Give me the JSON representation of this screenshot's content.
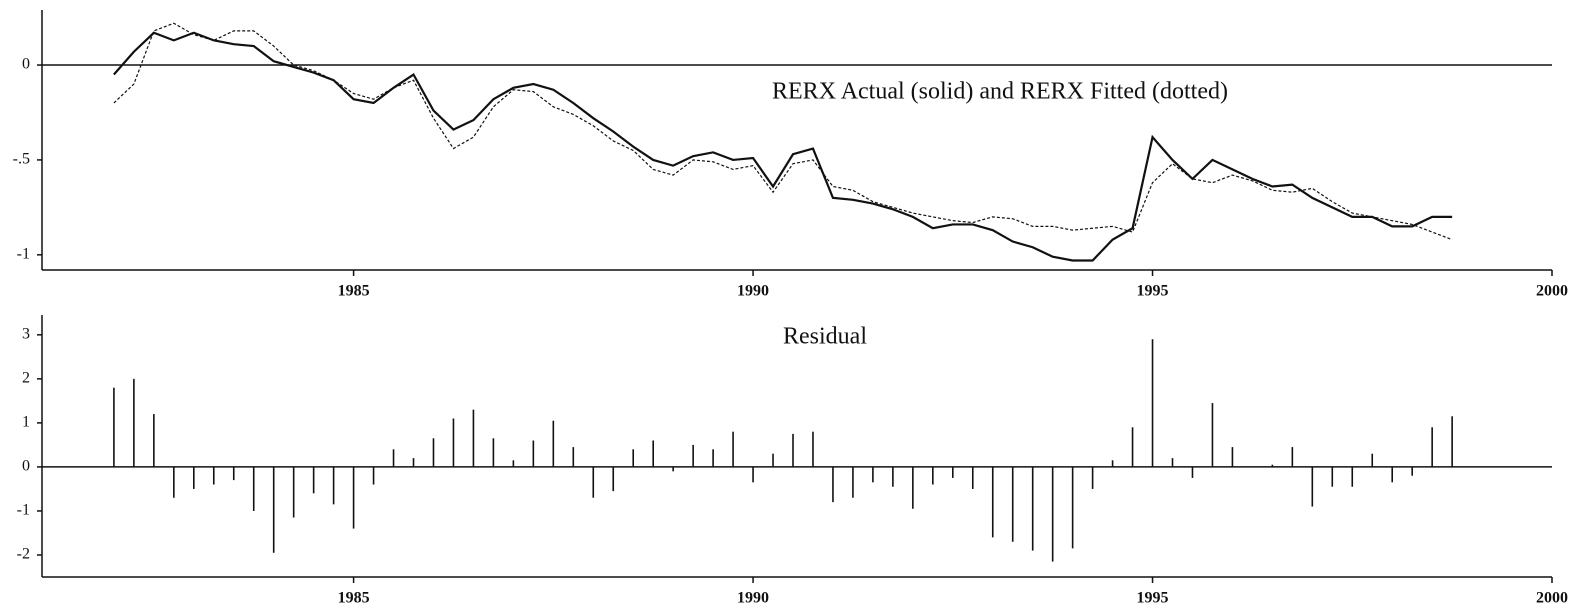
{
  "chart_data": [
    {
      "type": "line",
      "title": "RERX Actual (solid) and RERX Fitted (dotted)",
      "x": [
        1982,
        1982.25,
        1982.5,
        1982.75,
        1983,
        1983.25,
        1983.5,
        1983.75,
        1984,
        1984.25,
        1984.5,
        1984.75,
        1985,
        1985.25,
        1985.5,
        1985.75,
        1986,
        1986.25,
        1986.5,
        1986.75,
        1987,
        1987.25,
        1987.5,
        1987.75,
        1988,
        1988.25,
        1988.5,
        1988.75,
        1989,
        1989.25,
        1989.5,
        1989.75,
        1990,
        1990.25,
        1990.5,
        1990.75,
        1991,
        1991.25,
        1991.5,
        1991.75,
        1992,
        1992.25,
        1992.5,
        1992.75,
        1993,
        1993.25,
        1993.5,
        1993.75,
        1994,
        1994.25,
        1994.5,
        1994.75,
        1995,
        1995.25,
        1995.5,
        1995.75,
        1996,
        1996.25,
        1996.5,
        1996.75,
        1997,
        1997.25,
        1997.5,
        1997.75,
        1998,
        1998.25,
        1998.5,
        1998.75
      ],
      "series": [
        {
          "color": "#111111",
          "dash": false,
          "values": [
            -0.05,
            0.07,
            0.17,
            0.13,
            0.17,
            0.13,
            0.11,
            0.1,
            0.02,
            -0.01,
            -0.04,
            -0.08,
            -0.18,
            -0.2,
            -0.12,
            -0.05,
            -0.24,
            -0.34,
            -0.29,
            -0.18,
            -0.12,
            -0.1,
            -0.13,
            -0.2,
            -0.28,
            -0.35,
            -0.43,
            -0.5,
            -0.53,
            -0.48,
            -0.46,
            -0.5,
            -0.49,
            -0.64,
            -0.47,
            -0.44,
            -0.7,
            -0.71,
            -0.73,
            -0.76,
            -0.8,
            -0.86,
            -0.84,
            -0.84,
            -0.87,
            -0.93,
            -0.96,
            -1.01,
            -1.03,
            -1.03,
            -0.92,
            -0.86,
            -0.38,
            -0.5,
            -0.6,
            -0.5,
            -0.55,
            -0.6,
            -0.64,
            -0.63,
            -0.7,
            -0.75,
            -0.8,
            -0.8,
            -0.85,
            -0.85,
            -0.8,
            -0.8
          ]
        },
        {
          "color": "#111111",
          "dash": true,
          "values": [
            -0.2,
            -0.1,
            0.18,
            0.22,
            0.16,
            0.13,
            0.18,
            0.18,
            0.1,
            0.0,
            -0.03,
            -0.08,
            -0.15,
            -0.18,
            -0.12,
            -0.08,
            -0.28,
            -0.44,
            -0.38,
            -0.22,
            -0.13,
            -0.14,
            -0.22,
            -0.26,
            -0.32,
            -0.4,
            -0.45,
            -0.55,
            -0.58,
            -0.5,
            -0.51,
            -0.55,
            -0.53,
            -0.67,
            -0.52,
            -0.5,
            -0.64,
            -0.66,
            -0.72,
            -0.75,
            -0.78,
            -0.8,
            -0.82,
            -0.83,
            -0.8,
            -0.81,
            -0.85,
            -0.85,
            -0.87,
            -0.86,
            -0.85,
            -0.88,
            -0.62,
            -0.52,
            -0.6,
            -0.62,
            -0.58,
            -0.61,
            -0.66,
            -0.67,
            -0.65,
            -0.72,
            -0.78,
            -0.8,
            -0.82,
            -0.84,
            -0.88,
            -0.92
          ]
        }
      ],
      "xlim": [
        1981.1,
        2000
      ],
      "xticks": [
        1985,
        1990,
        1995,
        2000
      ],
      "ylim": [
        -1.08,
        0.29
      ],
      "yticks": [
        0,
        {
          "value": -0.5,
          "label": "-.5"
        },
        -1
      ]
    },
    {
      "type": "bar",
      "title": "Residual",
      "x": [
        1982,
        1982.25,
        1982.5,
        1982.75,
        1983,
        1983.25,
        1983.5,
        1983.75,
        1984,
        1984.25,
        1984.5,
        1984.75,
        1985,
        1985.25,
        1985.5,
        1985.75,
        1986,
        1986.25,
        1986.5,
        1986.75,
        1987,
        1987.25,
        1987.5,
        1987.75,
        1988,
        1988.25,
        1988.5,
        1988.75,
        1989,
        1989.25,
        1989.5,
        1989.75,
        1990,
        1990.25,
        1990.5,
        1990.75,
        1991,
        1991.25,
        1991.5,
        1991.75,
        1992,
        1992.25,
        1992.5,
        1992.75,
        1993,
        1993.25,
        1993.5,
        1993.75,
        1994,
        1994.25,
        1994.5,
        1994.75,
        1995,
        1995.25,
        1995.5,
        1995.75,
        1996,
        1996.25,
        1996.5,
        1996.75,
        1997,
        1997.25,
        1997.5,
        1997.75,
        1998,
        1998.25,
        1998.5,
        1998.75
      ],
      "values": [
        1.8,
        2.0,
        1.2,
        -0.7,
        -0.5,
        -0.4,
        -0.3,
        -1.0,
        -1.95,
        -1.15,
        -0.6,
        -0.85,
        -1.4,
        -0.4,
        0.4,
        0.2,
        0.65,
        1.1,
        1.3,
        0.65,
        0.15,
        0.6,
        1.05,
        0.45,
        -0.7,
        -0.55,
        0.4,
        0.6,
        -0.1,
        0.5,
        0.4,
        0.8,
        -0.35,
        0.3,
        0.75,
        0.8,
        -0.8,
        -0.7,
        -0.35,
        -0.45,
        -0.95,
        -0.4,
        -0.25,
        -0.5,
        -1.6,
        -1.7,
        -1.9,
        -2.15,
        -1.85,
        -0.5,
        0.15,
        0.9,
        2.9,
        0.2,
        -0.25,
        1.45,
        0.45,
        0.0,
        0.05,
        0.45,
        -0.9,
        -0.45,
        -0.45,
        0.3,
        -0.35,
        -0.2,
        0.9,
        1.15
      ],
      "color": "#111111",
      "xlim": [
        1981.1,
        2000
      ],
      "xticks": [
        1985,
        1990,
        1995,
        2000
      ],
      "ylim": [
        -2.5,
        3.45
      ],
      "yticks": [
        3,
        2,
        1,
        0,
        -1,
        -2
      ]
    }
  ]
}
